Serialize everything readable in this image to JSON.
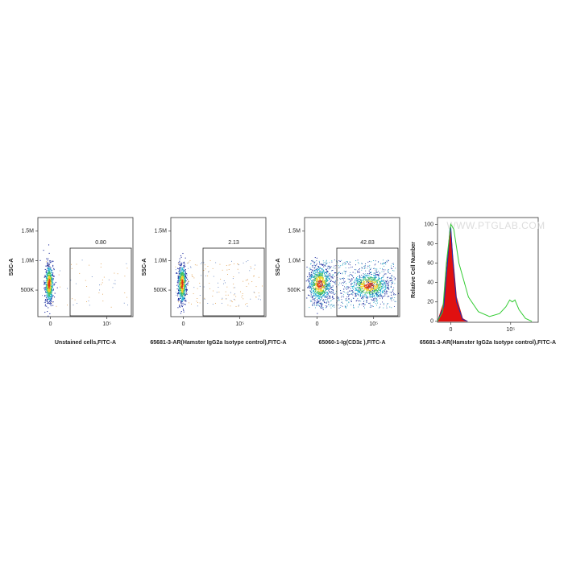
{
  "chart_data": [
    {
      "type": "density",
      "x_label": "Unstained cells,FITC-A",
      "y_label": "SSC-A",
      "xscale": "biexponential",
      "xlim": [
        -600,
        2000000
      ],
      "xticks": [
        0,
        {
          "value": 100000,
          "label": "10⁵"
        }
      ],
      "ylim": [
        50000,
        1730000
      ],
      "yticks": [
        {
          "value": 500000,
          "label": "500K"
        },
        {
          "value": 1000000,
          "label": "1.0M"
        },
        {
          "value": 1500000,
          "label": "1.5M"
        }
      ],
      "gate_label": "0.80"
    },
    {
      "type": "density",
      "x_label": "65681-3-AR(Hamster IgG2a Isotype control),FITC-A",
      "y_label": "SSC-A",
      "xscale": "biexponential",
      "xlim": [
        -600,
        2000000
      ],
      "xticks": [
        0,
        {
          "value": 100000,
          "label": "10⁵"
        }
      ],
      "ylim": [
        50000,
        1730000
      ],
      "yticks": [
        {
          "value": 500000,
          "label": "500K"
        },
        {
          "value": 1000000,
          "label": "1.0M"
        },
        {
          "value": 1500000,
          "label": "1.5M"
        }
      ],
      "gate_label": "2.13"
    },
    {
      "type": "density",
      "x_label": "65060-1-Ig(CD3ε ),FITC-A",
      "y_label": "SSC-A",
      "xscale": "biexponential",
      "xlim": [
        -600,
        2000000
      ],
      "xticks": [
        0,
        {
          "value": 100000,
          "label": "10⁵"
        }
      ],
      "ylim": [
        50000,
        1730000
      ],
      "yticks": [
        {
          "value": 500000,
          "label": "500K"
        },
        {
          "value": 1000000,
          "label": "1.0M"
        },
        {
          "value": 1500000,
          "label": "1.5M"
        }
      ],
      "gate_label": "42.83"
    },
    {
      "type": "histogram",
      "x_label": "65681-3-AR(Hamster IgG2a Isotype control),FITC-A",
      "y_label": "Relative Cell Number",
      "xscale": "biexponential",
      "watermark": "WWW.PTGLAB.COM",
      "xlim": [
        -600,
        2000000
      ],
      "xticks": [
        0,
        {
          "value": 100000,
          "label": "10⁵"
        }
      ],
      "ylim": [
        -1,
        107
      ],
      "yticks": [
        0,
        20,
        40,
        60,
        80,
        100
      ],
      "series": [
        {
          "color": "#e01010",
          "fill": true,
          "x": [
            -600,
            -250,
            -100,
            -30,
            0,
            60,
            200,
            500,
            900
          ],
          "values": [
            0,
            20,
            70,
            94,
            95,
            70,
            25,
            3,
            0
          ]
        },
        {
          "color": "#1a2fb0",
          "fill": false,
          "x": [
            -600,
            -250,
            -100,
            -30,
            0,
            60,
            200,
            500,
            900
          ],
          "values": [
            0,
            15,
            65,
            95,
            97,
            65,
            20,
            2,
            0
          ]
        },
        {
          "color": "#33cc33",
          "fill": false,
          "x": [
            -600,
            -300,
            -150,
            0,
            100,
            300,
            1000,
            3000,
            10000,
            30000,
            60000,
            90000,
            120000,
            160000,
            250000,
            500000,
            1000000
          ],
          "values": [
            0,
            10,
            60,
            100,
            95,
            60,
            25,
            10,
            5,
            8,
            15,
            22,
            20,
            22,
            12,
            3,
            0
          ]
        }
      ]
    }
  ]
}
